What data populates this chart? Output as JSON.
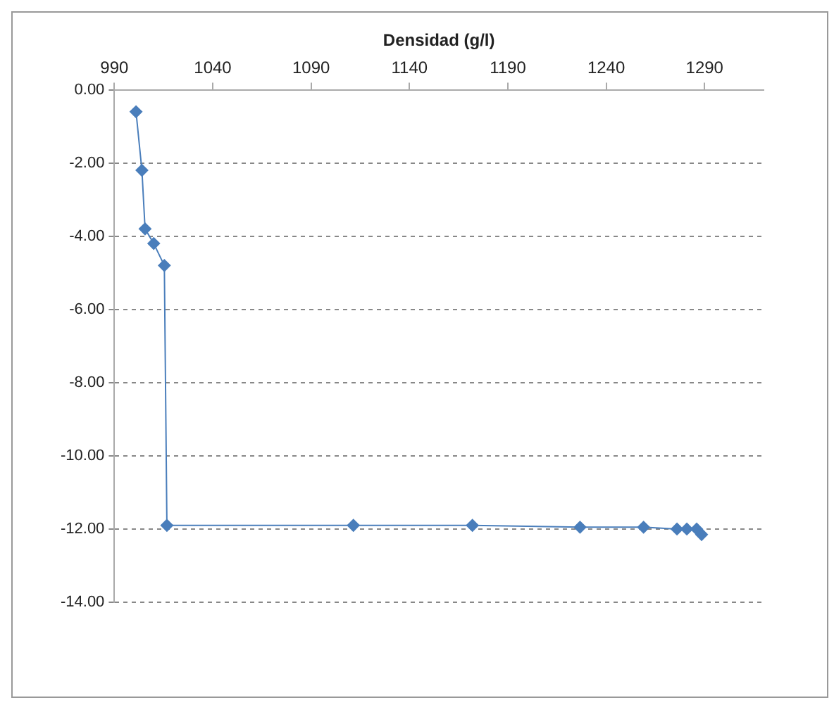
{
  "chart_data": {
    "type": "line",
    "xlabel": "Densidad (g/l)",
    "x": [
      1001,
      1004,
      1005.6,
      1010,
      1015.4,
      1016.7,
      1111.5,
      1172,
      1226.7,
      1259,
      1276,
      1281,
      1286,
      1288.5
    ],
    "series": [
      {
        "color": "#4a7ebb",
        "values": [
          -0.6,
          -2.2,
          -3.8,
          -4.2,
          -4.8,
          -11.9,
          -11.9,
          -11.9,
          -11.95,
          -11.95,
          -12.0,
          -12.0,
          -12.0,
          -12.15
        ]
      }
    ],
    "xlim": [
      990,
      1320
    ],
    "xticks": [
      990,
      1040,
      1090,
      1140,
      1190,
      1240,
      1290
    ],
    "ylim": [
      -14,
      0
    ],
    "yticks": [
      {
        "value": 0,
        "label": "0.00"
      },
      {
        "value": -2,
        "label": "-2.00"
      },
      {
        "value": -4,
        "label": "-4.00"
      },
      {
        "value": -6,
        "label": "-6.00"
      },
      {
        "value": -8,
        "label": "-8.00"
      },
      {
        "value": -10,
        "label": "-10.00"
      },
      {
        "value": -12,
        "label": "-12.00"
      },
      {
        "value": -14,
        "label": "-14.00"
      }
    ],
    "grid": "y",
    "legend": false,
    "marker": "diamond",
    "line_style": "solid"
  }
}
